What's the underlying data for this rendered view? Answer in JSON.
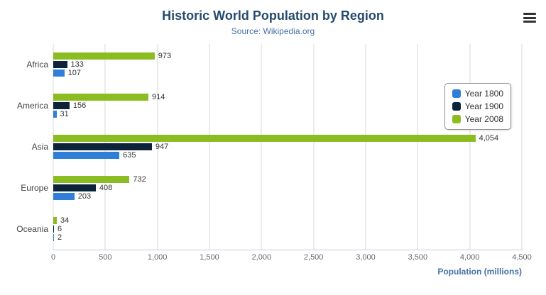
{
  "header": {
    "title": "Historic World Population by Region",
    "subtitle": "Source: Wikipedia.org",
    "export_menu_icon": "hamburger-menu"
  },
  "axes": {
    "x_title": "Population (millions)"
  },
  "chart_data": {
    "type": "bar",
    "orientation": "horizontal",
    "title": "Historic World Population by Region",
    "subtitle": "Source: Wikipedia.org",
    "categories": [
      "Africa",
      "America",
      "Asia",
      "Europe",
      "Oceania"
    ],
    "series": [
      {
        "name": "Year 1800",
        "color": "#2f7ed8",
        "values": [
          107,
          31,
          635,
          203,
          2
        ]
      },
      {
        "name": "Year 1900",
        "color": "#0d233a",
        "values": [
          133,
          156,
          947,
          408,
          6
        ]
      },
      {
        "name": "Year 2008",
        "color": "#8bbc21",
        "values": [
          973,
          914,
          4054,
          732,
          34
        ]
      }
    ],
    "bar_order_top_to_bottom": [
      "Year 2008",
      "Year 1900",
      "Year 1800"
    ],
    "xlabel": "Population (millions)",
    "ylabel": "",
    "xlim": [
      0,
      4500
    ],
    "xticks": [
      0,
      500,
      1000,
      1500,
      2000,
      2500,
      3000,
      3500,
      4000,
      4500
    ],
    "grid": true,
    "legend_position": "right"
  }
}
